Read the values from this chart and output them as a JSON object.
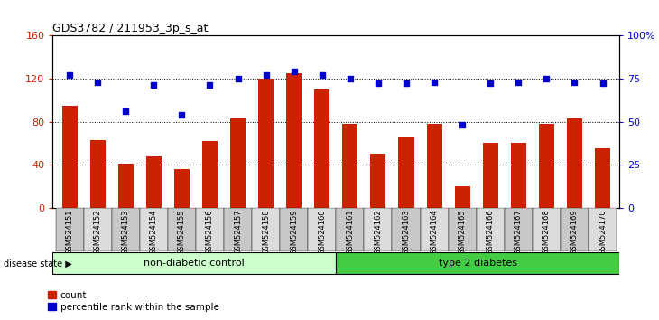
{
  "title": "GDS3782 / 211953_3p_s_at",
  "samples": [
    "GSM524151",
    "GSM524152",
    "GSM524153",
    "GSM524154",
    "GSM524155",
    "GSM524156",
    "GSM524157",
    "GSM524158",
    "GSM524159",
    "GSM524160",
    "GSM524161",
    "GSM524162",
    "GSM524163",
    "GSM524164",
    "GSM524165",
    "GSM524166",
    "GSM524167",
    "GSM524168",
    "GSM524169",
    "GSM524170"
  ],
  "counts": [
    95,
    63,
    41,
    48,
    36,
    62,
    83,
    120,
    125,
    110,
    78,
    50,
    65,
    78,
    20,
    60,
    60,
    78,
    83,
    55
  ],
  "percentiles": [
    77,
    73,
    56,
    71,
    54,
    71,
    75,
    77,
    79,
    77,
    75,
    72,
    72,
    73,
    48,
    72,
    73,
    75,
    73,
    72
  ],
  "non_diabetic_count": 10,
  "type2_count": 10,
  "bar_color": "#cc2200",
  "dot_color": "#0000cc",
  "non_diabetic_color": "#ccffcc",
  "type2_color": "#44cc44",
  "ylim_left": [
    0,
    160
  ],
  "ylim_right": [
    0,
    100
  ],
  "yticks_left": [
    0,
    40,
    80,
    120,
    160
  ],
  "yticks_right": [
    0,
    25,
    50,
    75,
    100
  ],
  "ytick_labels_right": [
    "0",
    "25",
    "50",
    "75",
    "100%"
  ],
  "legend_count_label": "count",
  "legend_pct_label": "percentile rank within the sample",
  "group_label_left": "non-diabetic control",
  "group_label_right": "type 2 diabetes",
  "disease_state_label": "disease state"
}
